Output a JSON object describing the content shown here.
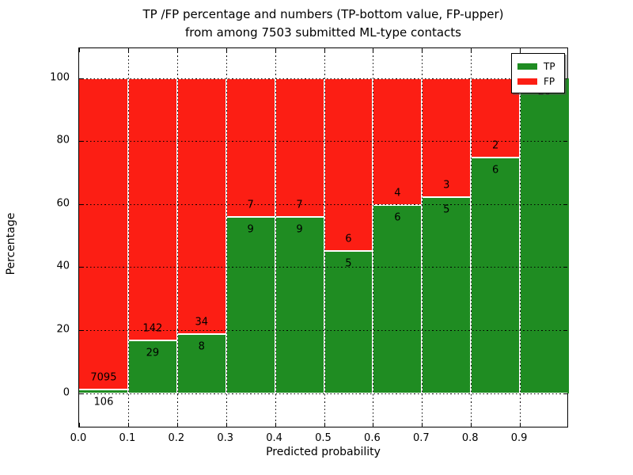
{
  "title": {
    "line1": "TP /FP percentage and numbers (TP-bottom value, FP-upper)",
    "line2": "from among 7503 submitted ML-type contacts"
  },
  "axes": {
    "ylabel": "Percentage",
    "xlabel": "Predicted probability",
    "ytick_labels": [
      "0",
      "20",
      "40",
      "60",
      "80",
      "100"
    ],
    "ytick_values": [
      0,
      20,
      40,
      60,
      80,
      100
    ],
    "xtick_labels": [
      "0.0",
      "0.1",
      "0.2",
      "0.3",
      "0.4",
      "0.5",
      "0.6",
      "0.7",
      "0.8",
      "0.9"
    ],
    "xtick_values": [
      0.0,
      0.1,
      0.2,
      0.3,
      0.4,
      0.5,
      0.6,
      0.7,
      0.8,
      0.9
    ]
  },
  "legend": {
    "items": [
      {
        "label": "TP",
        "color": "#1f8c22"
      },
      {
        "label": "FP",
        "color": "#fc1e14"
      }
    ]
  },
  "colors": {
    "tp_green": "#1f8c22",
    "fp_red": "#fc1e14",
    "grid": "#000000",
    "bar_edge": "#ffffff"
  },
  "chart_data": {
    "type": "bar",
    "stacked": true,
    "orientation": "vertical",
    "title": "TP /FP percentage and numbers (TP-bottom value, FP-upper) from among 7503 submitted ML-type contacts",
    "xlabel": "Predicted probability",
    "ylabel": "Percentage",
    "xlim": [
      0.0,
      1.0
    ],
    "ylim": [
      -11.2,
      109.4
    ],
    "grid": "dotted",
    "legend_position": "upper right",
    "bin_edges": [
      0.0,
      0.1,
      0.2,
      0.3,
      0.4,
      0.5,
      0.6,
      0.7,
      0.8,
      0.9,
      1.0
    ],
    "categories": [
      "0.0-0.1",
      "0.1-0.2",
      "0.2-0.3",
      "0.3-0.4",
      "0.4-0.5",
      "0.5-0.6",
      "0.6-0.7",
      "0.7-0.8",
      "0.8-0.9",
      "0.9-1.0"
    ],
    "series": [
      {
        "name": "TP",
        "color": "#1f8c22",
        "counts": [
          106,
          29,
          8,
          9,
          9,
          5,
          6,
          5,
          6,
          20
        ],
        "percent": [
          1.47,
          16.96,
          19.05,
          56.25,
          56.25,
          45.45,
          60.0,
          62.5,
          75.0,
          100.0
        ]
      },
      {
        "name": "FP",
        "color": "#fc1e14",
        "counts": [
          7095,
          142,
          34,
          7,
          7,
          6,
          4,
          3,
          2,
          null
        ],
        "percent": [
          98.53,
          83.04,
          80.95,
          43.75,
          43.75,
          54.55,
          40.0,
          37.5,
          25.0,
          0.0
        ]
      }
    ],
    "total_submitted": 7503
  }
}
